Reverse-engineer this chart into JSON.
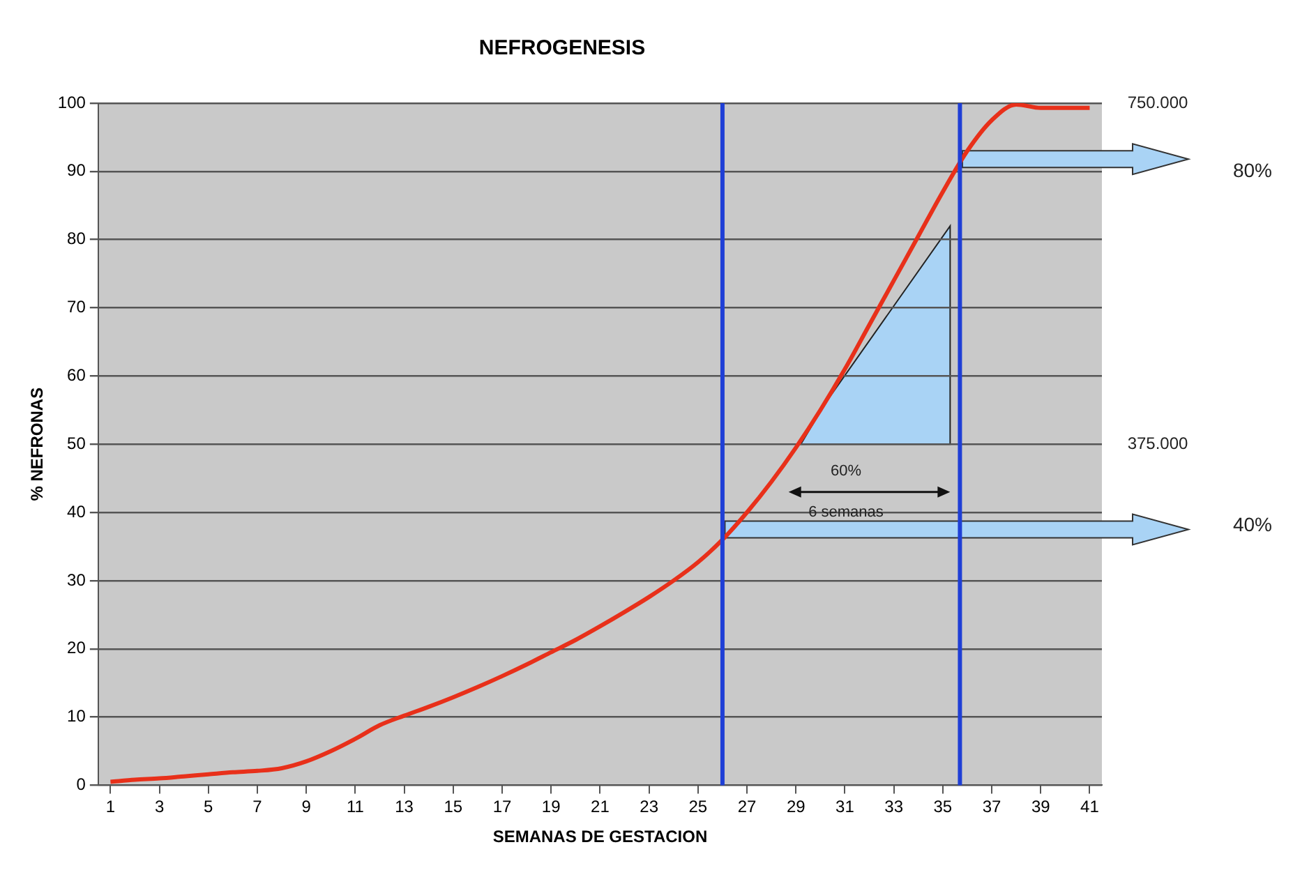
{
  "chart_data": {
    "type": "line",
    "title": "NEFROGENESIS",
    "xlabel": "SEMANAS DE GESTACION",
    "ylabel": "% NEFRONAS",
    "x": [
      1,
      2,
      3,
      4,
      5,
      6,
      7,
      8,
      9,
      10,
      11,
      12,
      13,
      14,
      15,
      16,
      17,
      18,
      19,
      20,
      21,
      22,
      23,
      24,
      25,
      26,
      27,
      28,
      29,
      30,
      31,
      32,
      33,
      34,
      35,
      36,
      37,
      38,
      39,
      40,
      41
    ],
    "series": [
      {
        "color": "#e8301a",
        "values": [
          0.5,
          0.8,
          1.0,
          1.3,
          1.6,
          1.9,
          2.1,
          2.5,
          3.5,
          5,
          6.8,
          8.8,
          10.2,
          11.5,
          12.9,
          14.4,
          16,
          17.7,
          19.5,
          21.3,
          23.3,
          25.4,
          27.6,
          30,
          32.7,
          36,
          40,
          44.5,
          49.5,
          55,
          61,
          67.5,
          74,
          80.5,
          87,
          93,
          97.5,
          99.8,
          99.3,
          99.3,
          99.3
        ]
      }
    ],
    "xlim": [
      0.5,
      41.5
    ],
    "xticks": [
      1,
      3,
      5,
      7,
      9,
      11,
      13,
      15,
      17,
      19,
      21,
      23,
      25,
      27,
      29,
      31,
      33,
      35,
      37,
      39,
      41
    ],
    "ylim": [
      0,
      100
    ],
    "yticks": [
      0,
      10,
      20,
      30,
      40,
      50,
      60,
      70,
      80,
      90,
      100
    ],
    "grid": "y",
    "legend": false,
    "marker": "none",
    "line_style": "solid",
    "ref_lines": [
      {
        "axis": "x",
        "value": 26,
        "color": "#1f3fd6"
      },
      {
        "axis": "x",
        "value": 35.7,
        "color": "#1f3fd6"
      }
    ],
    "annotations": [
      "750.000",
      "375.000",
      "80%",
      "40%",
      "60%",
      "6 semanas"
    ]
  }
}
